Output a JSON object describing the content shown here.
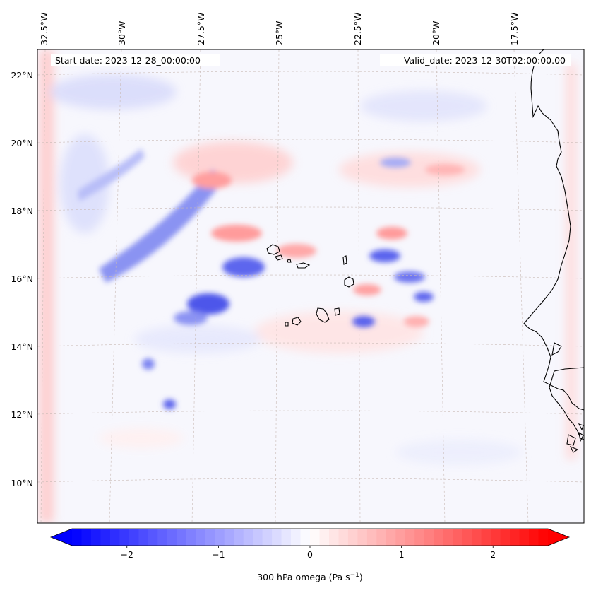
{
  "map": {
    "start_date_label": "Start date: 2023-12-28_00:00:00",
    "valid_date_label": "Valid_date: 2023-12-30T02:00:00.00",
    "lon_ticks": [
      "32.5°W",
      "30°W",
      "27.5°W",
      "25°W",
      "22.5°W",
      "20°W",
      "17.5°W"
    ],
    "lat_ticks": [
      "22°N",
      "20°N",
      "18°N",
      "16°N",
      "14°N",
      "12°N",
      "10°N"
    ],
    "field_variable": "300 hPa omega",
    "colorbar": {
      "label_text": "300 hPa omega (Pa s",
      "label_exponent": "−1",
      "label_close": ")",
      "ticks": [
        "−2",
        "−1",
        "0",
        "1",
        "2"
      ],
      "tick_values": [
        -2,
        -1,
        0,
        1,
        2
      ],
      "vmin": -2.6,
      "vmax": 2.6,
      "extend": "both",
      "colormap": "bwr",
      "colors": {
        "negative": "#0000ff",
        "neutral": "#ffffff",
        "positive": "#ff0000"
      }
    },
    "coastline_color": "#000000",
    "gridline_color": "#c8b9b4",
    "gridlines": true
  }
}
